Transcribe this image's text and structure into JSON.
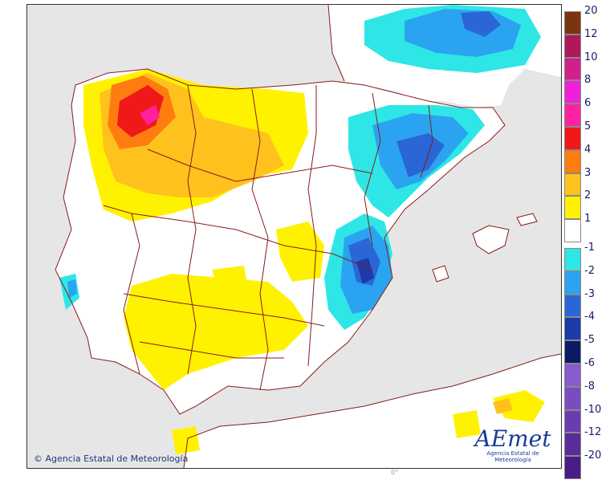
{
  "map": {
    "credit": "Agencia Estatal de Meteorología",
    "copyright_symbol": "©",
    "meridian_label": "0°",
    "logo_text": "AEmet",
    "logo_subtitle": "Agencia Estatal de Meteorología",
    "colors": {
      "sea": "#e6e6e6",
      "land": "#ffffff",
      "borders": "#8b1a1a"
    }
  },
  "legend": {
    "positive": [
      {
        "label": "20",
        "color": "#7a3510"
      },
      {
        "label": "12",
        "color": "#b0185a"
      },
      {
        "label": "10",
        "color": "#d0208a"
      },
      {
        "label": "8",
        "color": "#f020d8"
      },
      {
        "label": "6",
        "color": "#ff22a0"
      },
      {
        "label": "5",
        "color": "#f01818"
      },
      {
        "label": "4",
        "color": "#ff7d10"
      },
      {
        "label": "3",
        "color": "#ffc21c"
      },
      {
        "label": "2",
        "color": "#fff200"
      },
      {
        "label": "1",
        "color": "#ffffff"
      }
    ],
    "negative": [
      {
        "label": "-1",
        "color": "#2ee6e6"
      },
      {
        "label": "-2",
        "color": "#2aa4f0"
      },
      {
        "label": "-3",
        "color": "#2a66d6"
      },
      {
        "label": "-4",
        "color": "#1c3aa8"
      },
      {
        "label": "-5",
        "color": "#0c1a66"
      },
      {
        "label": "-6",
        "color": "#8a5ad0"
      },
      {
        "label": "-8",
        "color": "#7a4cc0"
      },
      {
        "label": "-10",
        "color": "#6a3cb0"
      },
      {
        "label": "-12",
        "color": "#5a2c9c"
      },
      {
        "label": "-20",
        "color": "#4a1c84"
      }
    ]
  }
}
